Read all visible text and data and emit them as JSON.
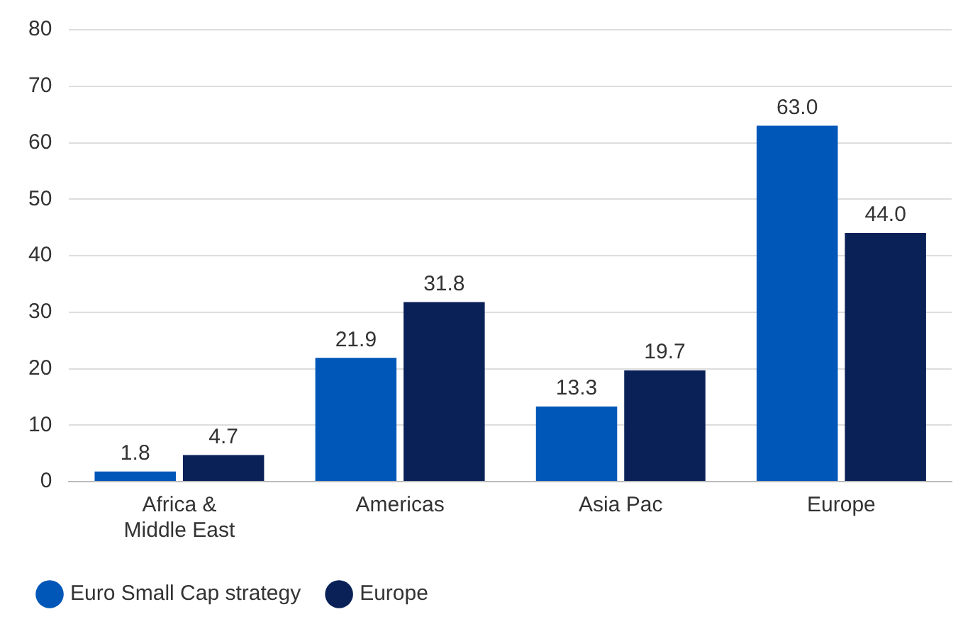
{
  "chart_data": {
    "type": "bar",
    "categories": [
      "Africa & Middle East",
      "Americas",
      "Asia Pac",
      "Europe"
    ],
    "series": [
      {
        "name": "Euro Small Cap strategy",
        "color": "#0057b8",
        "values": [
          1.8,
          21.9,
          13.3,
          63.0
        ]
      },
      {
        "name": "Europe",
        "color": "#0a2158",
        "values": [
          4.7,
          31.8,
          19.7,
          44.0
        ]
      }
    ],
    "value_labels": [
      [
        "1.8",
        "21.9",
        "13.3",
        "63.0"
      ],
      [
        "4.7",
        "31.8",
        "19.7",
        "44.0"
      ]
    ],
    "ylim": [
      0,
      80
    ],
    "yticks": [
      0,
      10,
      20,
      30,
      40,
      50,
      60,
      70,
      80
    ],
    "grid": "y",
    "legend": "bottom left"
  }
}
